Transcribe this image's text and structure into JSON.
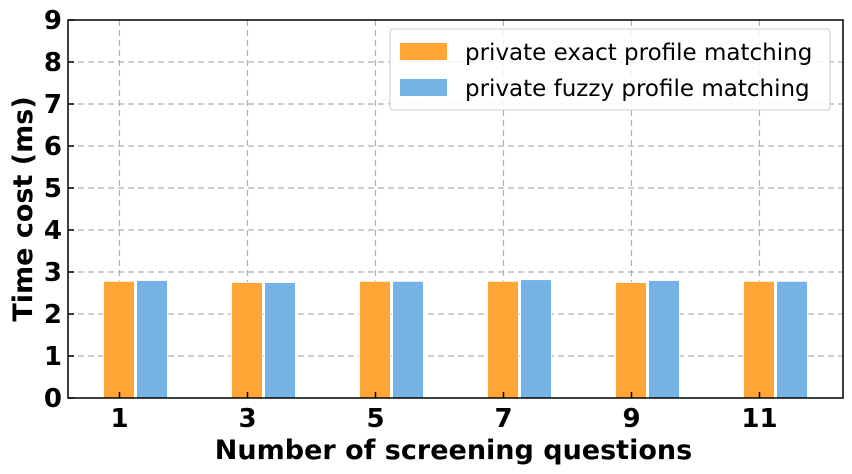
{
  "chart_data": {
    "type": "bar",
    "categories": [
      "1",
      "3",
      "5",
      "7",
      "9",
      "11"
    ],
    "series": [
      {
        "name": "private exact profile matching",
        "color": "#ffa533",
        "values": [
          2.78,
          2.75,
          2.78,
          2.78,
          2.75,
          2.78
        ]
      },
      {
        "name": "private fuzzy profile matching",
        "color": "#75b3e6",
        "values": [
          2.8,
          2.75,
          2.78,
          2.82,
          2.8,
          2.78
        ]
      }
    ],
    "xlabel": "Number of screening questions",
    "ylabel": "Time cost (ms)",
    "ylim": [
      0,
      9
    ],
    "yticks": [
      "0",
      "1",
      "2",
      "3",
      "4",
      "5",
      "6",
      "7",
      "8",
      "9"
    ],
    "grid": true,
    "legend_position": "top-right"
  }
}
